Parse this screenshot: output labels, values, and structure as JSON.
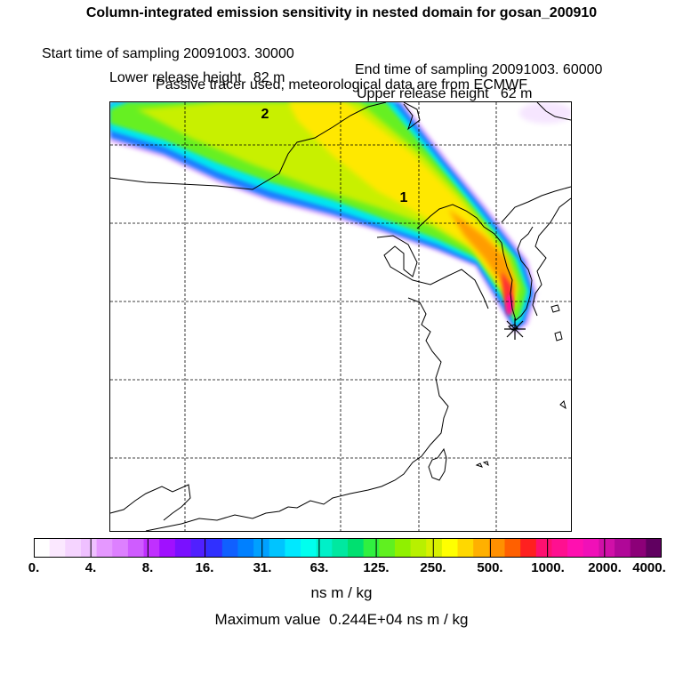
{
  "header": {
    "title": "Column-integrated emission sensitivity in nested domain for gosan_200910",
    "start_label": "Start time of sampling 20091003. 30000",
    "end_label": "End time of sampling 20091003. 60000",
    "lower_label": "Lower release height   82 m",
    "upper_label": "Upper release height   62 m",
    "tracer_note": "Passive tracer used, meteorological data are from ECMWF"
  },
  "map": {
    "markers": [
      {
        "label": "1"
      },
      {
        "label": "2"
      }
    ],
    "receptor_symbol": "star"
  },
  "colorbar": {
    "tick_labels": [
      "0.",
      "4.",
      "8.",
      "16.",
      "31.",
      "63.",
      "125.",
      "250.",
      "500.",
      "1000.",
      "2000.",
      "4000."
    ],
    "colors": [
      "#ffffff",
      "#fbe8ff",
      "#f5d4ff",
      "#efc0ff",
      "#e598ff",
      "#dd80ff",
      "#cf5cff",
      "#c030ff",
      "#a010ff",
      "#7a10ff",
      "#5020ff",
      "#3030ff",
      "#1060ff",
      "#0080ff",
      "#00a0ff",
      "#00c4ff",
      "#00e8ff",
      "#00ffee",
      "#00f0c8",
      "#00e8a0",
      "#00e070",
      "#30f040",
      "#60f020",
      "#90f000",
      "#b8f000",
      "#d8f000",
      "#ffff00",
      "#ffd800",
      "#ffb000",
      "#ff9000",
      "#ff6000",
      "#ff2020",
      "#ff1070",
      "#ff1090",
      "#ff10b0",
      "#f010b8",
      "#d010a8",
      "#b00898",
      "#8c0078",
      "#600060"
    ],
    "unit": "ns m / kg",
    "max_value_text": "Maximum value  0.244E+04 ns m / kg"
  }
}
